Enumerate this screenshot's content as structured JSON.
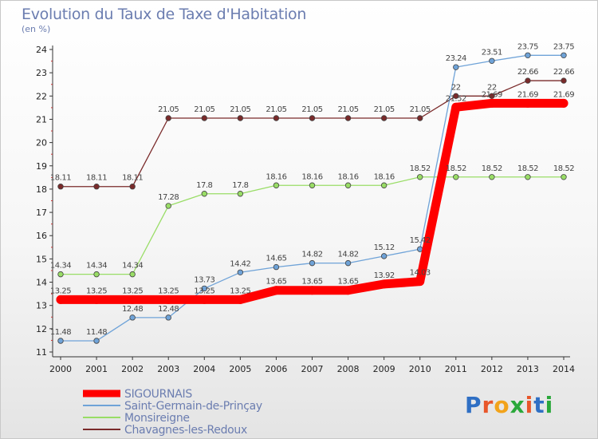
{
  "title": "Evolution du Taux de Taxe d'Habitation",
  "subtitle": "(en %)",
  "logo": "Proxiti",
  "chart_data": {
    "type": "line",
    "x": [
      "2000",
      "2001",
      "2002",
      "2003",
      "2004",
      "2005",
      "2006",
      "2007",
      "2008",
      "2009",
      "2010",
      "2011",
      "2012",
      "2013",
      "2014"
    ],
    "ylim": [
      11,
      24
    ],
    "yticks": [
      "11",
      "12",
      "13",
      "14",
      "15",
      "16",
      "17",
      "18",
      "19",
      "20",
      "21",
      "22",
      "23",
      "24"
    ],
    "grid": false,
    "legend_position": "bottom-left",
    "series": [
      {
        "name": "SIGOURNAIS",
        "color": "#ff0000",
        "values": [
          13.25,
          13.25,
          13.25,
          13.25,
          13.25,
          13.25,
          13.65,
          13.65,
          13.65,
          13.92,
          14.03,
          21.52,
          21.69,
          21.69,
          21.69
        ],
        "labels": [
          "13.25",
          "13.25",
          "13.25",
          "13.25",
          "13.25",
          "13.25",
          "13.65",
          "13.65",
          "13.65",
          "13.92",
          "14.03",
          "21.52",
          "21.69",
          "21.69",
          "21.69"
        ]
      },
      {
        "name": "Saint-Germain-de-Prinçay",
        "color": "#6fa3d8",
        "values": [
          11.48,
          11.48,
          12.48,
          12.48,
          13.73,
          14.42,
          14.65,
          14.82,
          14.82,
          15.12,
          15.42,
          23.24,
          23.51,
          23.75,
          23.75
        ],
        "labels": [
          "11.48",
          "11.48",
          "12.48",
          "12.48",
          "13.73",
          "14.42",
          "14.65",
          "14.82",
          "14.82",
          "15.12",
          "15.42",
          "23.24",
          "23.51",
          "23.75",
          "23.75"
        ]
      },
      {
        "name": "Monsireigne",
        "color": "#99dd66",
        "values": [
          14.34,
          14.34,
          14.34,
          17.28,
          17.8,
          17.8,
          18.16,
          18.16,
          18.16,
          18.16,
          18.52,
          18.52,
          18.52,
          18.52,
          18.52
        ],
        "labels": [
          "14.34",
          "14.34",
          "14.34",
          "17.28",
          "17.8",
          "17.8",
          "18.16",
          "18.16",
          "18.16",
          "18.16",
          "18.52",
          "18.52",
          "18.52",
          "18.52",
          "18.52"
        ]
      },
      {
        "name": "Chavagnes-les-Redoux",
        "color": "#7a2a2a",
        "values": [
          18.11,
          18.11,
          18.11,
          21.05,
          21.05,
          21.05,
          21.05,
          21.05,
          21.05,
          21.05,
          21.05,
          22,
          22,
          22.66,
          22.66
        ],
        "labels": [
          "18.11",
          "18.11",
          "18.11",
          "21.05",
          "21.05",
          "21.05",
          "21.05",
          "21.05",
          "21.05",
          "21.05",
          "21.05",
          "22",
          "22",
          "22.66",
          "22.66"
        ]
      }
    ]
  }
}
